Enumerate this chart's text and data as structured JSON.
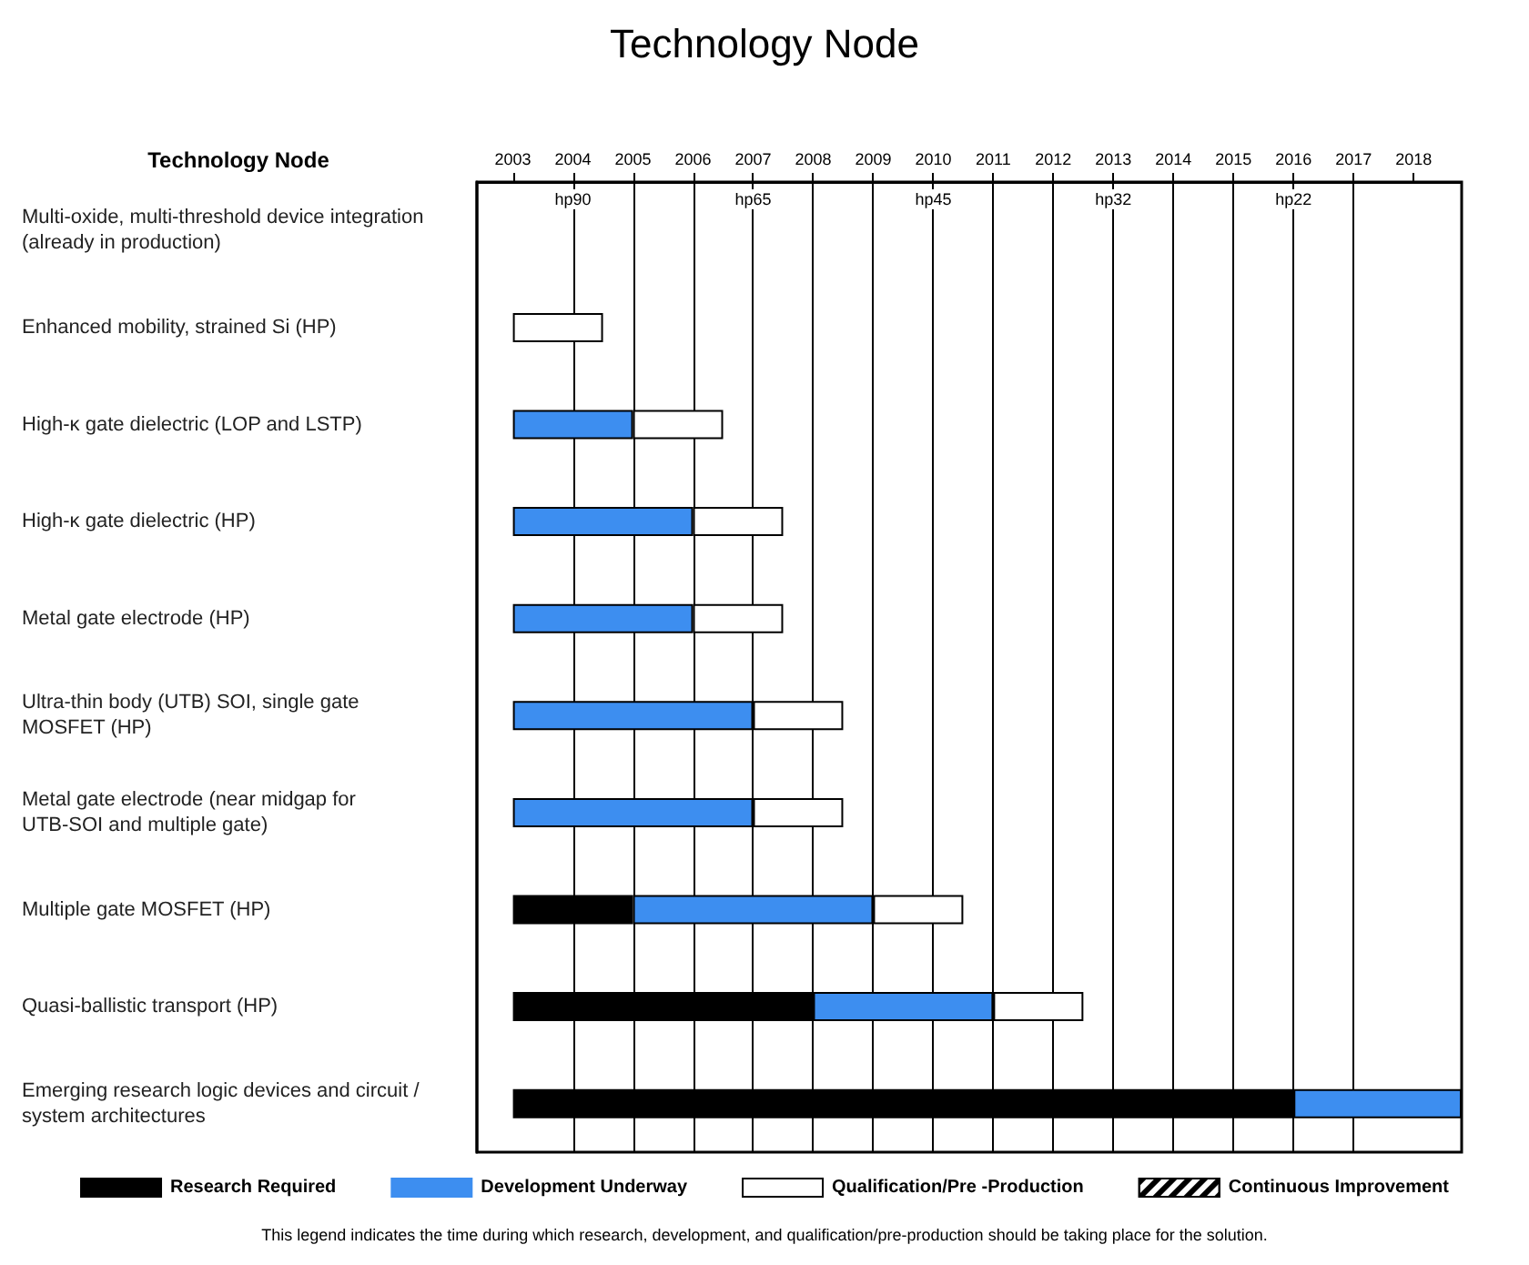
{
  "chart_data": {
    "type": "bar",
    "title": "Technology Node",
    "orientation": "horizontal",
    "categories": [
      "Multi-oxide, multi-threshold device integration (already in production)",
      "Enhanced mobility, strained Si (HP)",
      "High-κ gate dielectric (LOP and LSTP)",
      "High-κ gate dielectric (HP)",
      "Metal gate electrode (HP)",
      "Ultra-thin body (UTB) SOI, single gate MOSFET (HP)",
      "Metal gate electrode (near midgap for UTB-SOI and multiple gate)",
      "Multiple gate MOSFET (HP)",
      "Quasi-ballistic transport (HP)",
      "Emerging research logic devices and circuit / system architectures"
    ],
    "series": [
      {
        "name": "Research Required",
        "color": "#000000",
        "base": [
          null,
          null,
          null,
          null,
          null,
          null,
          null,
          2003,
          2003,
          2003
        ],
        "values": [
          null,
          null,
          null,
          null,
          null,
          null,
          null,
          2,
          5,
          13
        ]
      },
      {
        "name": "Development Underway",
        "color": "#3d8ef0",
        "base": [
          null,
          null,
          2003,
          2003,
          2003,
          2003,
          2003,
          2005,
          2008,
          2016
        ],
        "values": [
          null,
          null,
          2,
          3,
          3,
          4,
          4,
          4,
          3,
          2.8
        ]
      },
      {
        "name": "Qualification/Pre -Production",
        "color": "#ffffff",
        "base": [
          null,
          2003,
          2005,
          2006,
          2006,
          2007,
          2007,
          2009,
          2011,
          null
        ],
        "values": [
          null,
          1.5,
          1.5,
          1.5,
          1.5,
          1.5,
          1.5,
          1.5,
          1.5,
          null
        ]
      },
      {
        "name": "Continuous Improvement",
        "color": "#ffffff",
        "values": [
          null,
          null,
          null,
          null,
          null,
          null,
          null,
          null,
          null,
          null
        ]
      }
    ],
    "xlim": [
      2002.4,
      2018.8
    ],
    "xticks": [
      2003,
      2004,
      2005,
      2006,
      2007,
      2008,
      2009,
      2010,
      2011,
      2012,
      2013,
      2014,
      2015,
      2016,
      2017,
      2018
    ],
    "grid": "x",
    "legend": "bottom",
    "annotations": [
      "Technology Node",
      {
        "text": "hp90",
        "x": 2004
      },
      {
        "text": "hp65",
        "x": 2007
      },
      {
        "text": "hp45",
        "x": 2010
      },
      {
        "text": "hp32",
        "x": 2013
      },
      {
        "text": "hp22",
        "x": 2016
      },
      "This legend indicates the time during which research, development, and qualification/pre-production should be taking place for the solution."
    ]
  }
}
